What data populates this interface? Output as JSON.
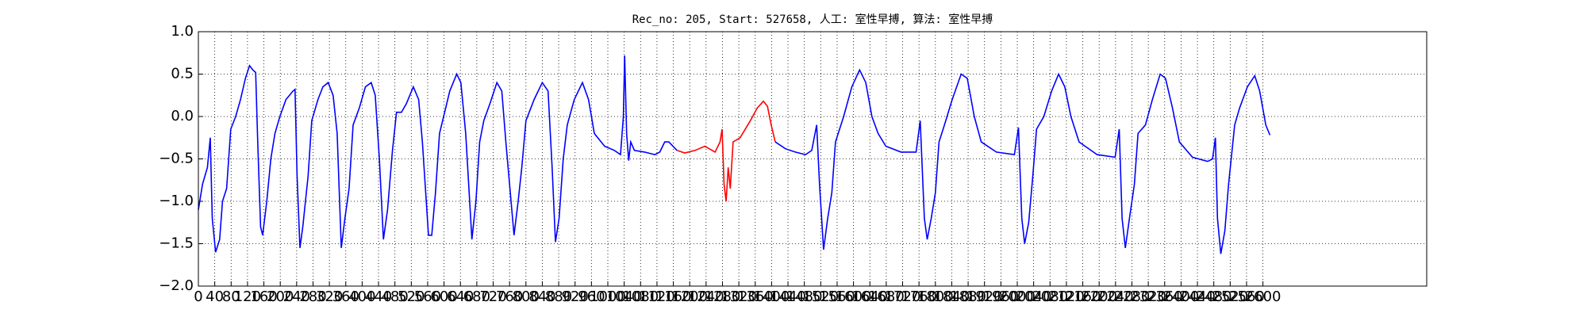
{
  "chart_data": {
    "type": "line",
    "title": "Rec_no: 205, Start: 527658, 人工: 室性早搏, 算法: 室性早搏",
    "xlim": [
      0,
      3000
    ],
    "ylim": [
      -2,
      1
    ],
    "xticks": [
      0,
      40,
      80,
      120,
      160,
      200,
      240,
      280,
      320,
      360,
      400,
      440,
      480,
      520,
      560,
      600,
      640,
      680,
      720,
      760,
      800,
      840,
      880,
      920,
      960,
      1000,
      1040,
      1080,
      1120,
      1160,
      1200,
      1240,
      1280,
      1320,
      1360,
      1400,
      1440,
      1480,
      1520,
      1560,
      1600,
      1640,
      1680,
      1720,
      1760,
      1800,
      1840,
      1880,
      1920,
      1960,
      2000,
      2040,
      2080,
      2120,
      2160,
      2200,
      2240,
      2280,
      2320,
      2360,
      2400,
      2440,
      2480,
      2520,
      2560,
      2600
    ],
    "yticks": [
      {
        "value": -2,
        "label": "−2.0"
      },
      {
        "value": -1.5,
        "label": "−1.5"
      },
      {
        "value": -1,
        "label": "−1.0"
      },
      {
        "value": -0.5,
        "label": "−0.5"
      },
      {
        "value": 0,
        "label": "0.0"
      },
      {
        "value": 0.5,
        "label": "0.5"
      },
      {
        "value": 1,
        "label": "1.0"
      }
    ],
    "grid": true,
    "series": [
      {
        "color": "#0000ff",
        "x": [
          0,
          10,
          22,
          29,
          34,
          42,
          52,
          59,
          69,
          79,
          91,
          103,
          115,
          125,
          133,
          140,
          145,
          152,
          157,
          167,
          177,
          187,
          199,
          214,
          231,
          236,
          241,
          248,
          255,
          268,
          277,
          292,
          304,
          317,
          329,
          339,
          349,
          358,
          368,
          378,
          393,
          408,
          422,
          432,
          442,
          452,
          462,
          474,
          484,
          496,
          508,
          525,
          538,
          547,
          562,
          570,
          579,
          589,
          599,
          614,
          631,
          641,
          653,
          668,
          678,
          687,
          697,
          712,
          729,
          741,
          751,
          771,
          781,
          790,
          800,
          820,
          840,
          854,
          864,
          872,
          881,
          891,
          901,
          918,
          938,
          953,
          967,
          992,
          1016,
          1031,
          1038,
          1041,
          1046,
          1051,
          1056,
          1065,
          1090,
          1115,
          1127,
          1139,
          1149,
          1169
        ],
        "values": [
          -1.1,
          -0.8,
          -0.6,
          -0.25,
          -1.2,
          -1.6,
          -1.45,
          -1.0,
          -0.85,
          -0.15,
          0.0,
          0.2,
          0.45,
          0.6,
          0.55,
          0.52,
          -0.3,
          -1.3,
          -1.4,
          -1.0,
          -0.5,
          -0.2,
          0.0,
          0.2,
          0.3,
          0.32,
          -0.7,
          -1.55,
          -1.3,
          -0.7,
          -0.05,
          0.2,
          0.35,
          0.4,
          0.25,
          -0.2,
          -1.55,
          -1.2,
          -0.85,
          -0.1,
          0.1,
          0.35,
          0.4,
          0.25,
          -0.5,
          -1.45,
          -1.1,
          -0.4,
          0.05,
          0.05,
          0.15,
          0.35,
          0.2,
          -0.3,
          -1.4,
          -1.4,
          -0.9,
          -0.2,
          0.0,
          0.3,
          0.5,
          0.4,
          -0.2,
          -1.45,
          -1.0,
          -0.3,
          -0.05,
          0.15,
          0.4,
          0.3,
          -0.3,
          -1.4,
          -1.0,
          -0.6,
          -0.05,
          0.2,
          0.4,
          0.3,
          -0.6,
          -1.48,
          -1.2,
          -0.5,
          -0.1,
          0.2,
          0.4,
          0.2,
          -0.2,
          -0.35,
          -0.4,
          -0.45,
          0.0,
          0.72,
          -0.2,
          -0.52,
          -0.3,
          -0.4,
          -0.42,
          -0.45,
          -0.42,
          -0.3,
          -0.3,
          -0.4
        ]
      },
      {
        "color": "#ff0000",
        "x": [
          1169,
          1188,
          1213,
          1237,
          1262,
          1274,
          1279,
          1284,
          1289,
          1294,
          1299,
          1306,
          1323,
          1348,
          1365,
          1380,
          1390,
          1399,
          1409
        ],
        "values": [
          -0.4,
          -0.43,
          -0.4,
          -0.35,
          -0.42,
          -0.3,
          -0.15,
          -0.8,
          -1.0,
          -0.6,
          -0.85,
          -0.3,
          -0.25,
          -0.05,
          0.1,
          0.18,
          0.12,
          -0.1,
          -0.3
        ]
      },
      {
        "color": "#0000ff",
        "x": [
          1409,
          1434,
          1458,
          1483,
          1498,
          1510,
          1517,
          1527,
          1537,
          1547,
          1556,
          1576,
          1596,
          1615,
          1630,
          1645,
          1660,
          1679,
          1716,
          1753,
          1763,
          1773,
          1780,
          1790,
          1800,
          1809,
          1822,
          1841,
          1863,
          1878,
          1895,
          1912,
          1949,
          1993,
          2003,
          2011,
          2018,
          2028,
          2038,
          2047,
          2065,
          2084,
          2101,
          2116,
          2131,
          2151,
          2195,
          2239,
          2249,
          2256,
          2264,
          2274,
          2286,
          2295,
          2313,
          2330,
          2349,
          2362,
          2379,
          2396,
          2428,
          2465,
          2477,
          2484,
          2489,
          2497,
          2507,
          2516,
          2531,
          2543,
          2562,
          2580,
          2592,
          2607,
          2617
        ],
        "values": [
          -0.3,
          -0.38,
          -0.42,
          -0.45,
          -0.4,
          -0.1,
          -0.8,
          -1.57,
          -1.2,
          -0.9,
          -0.3,
          0.0,
          0.35,
          0.55,
          0.4,
          0.0,
          -0.2,
          -0.35,
          -0.42,
          -0.42,
          -0.05,
          -1.2,
          -1.45,
          -1.2,
          -0.9,
          -0.3,
          -0.1,
          0.2,
          0.5,
          0.45,
          0.0,
          -0.3,
          -0.42,
          -0.45,
          -0.13,
          -1.2,
          -1.5,
          -1.25,
          -0.7,
          -0.15,
          0.0,
          0.3,
          0.5,
          0.35,
          0.0,
          -0.3,
          -0.45,
          -0.48,
          -0.15,
          -1.2,
          -1.55,
          -1.2,
          -0.8,
          -0.2,
          -0.1,
          0.2,
          0.5,
          0.45,
          0.1,
          -0.3,
          -0.48,
          -0.53,
          -0.5,
          -0.25,
          -1.2,
          -1.62,
          -1.35,
          -0.8,
          -0.1,
          0.1,
          0.35,
          0.48,
          0.3,
          -0.1,
          -0.22
        ]
      }
    ]
  }
}
